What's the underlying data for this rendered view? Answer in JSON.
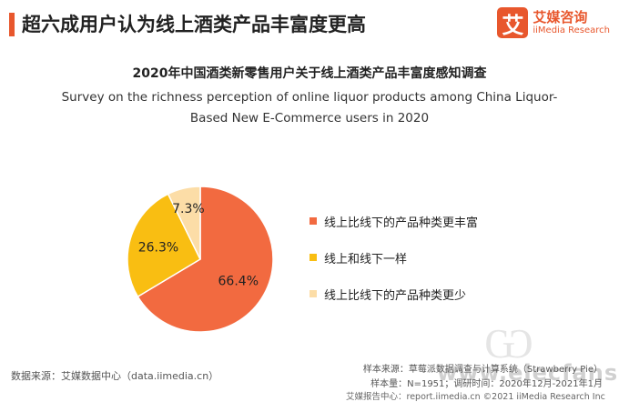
{
  "header": {
    "title": "超六成用户认为线上酒类产品丰富度更高",
    "accent_color": "#E8572D"
  },
  "brand": {
    "logo_glyph": "艾",
    "name_cn": "艾媒咨询",
    "name_en": "iiMedia Research",
    "color": "#E8572D"
  },
  "chart_data": {
    "type": "pie",
    "title": "2020年中国酒类新零售用户关于线上酒类产品丰富度感知调查",
    "subtitle_line1": "Survey on the richness perception of online liquor products among China Liquor-",
    "subtitle_line2": "Based New E-Commerce users in 2020",
    "slices": [
      {
        "label": "线上比线下的产品种类更丰富",
        "value": 66.4,
        "display": "66.4%",
        "color": "#F26A40"
      },
      {
        "label": "线上和线下一样",
        "value": 26.3,
        "display": "26.3%",
        "color": "#F9BE12"
      },
      {
        "label": "线上比线下的产品种类更少",
        "value": 7.3,
        "display": "7.3%",
        "color": "#FCDDA7"
      }
    ],
    "start": "top",
    "direction": "clockwise",
    "legend_position": "right"
  },
  "sources": {
    "data_source": "数据来源：艾媒数据中心（data.iimedia.cn）",
    "sample_source": "样本来源：草莓派数据调查与计算系统（Strawberry Pie）",
    "sample_info": "样本量：N=1951；调研时间：2020年12月-2021年1月"
  },
  "footer": {
    "text": "艾媒报告中心：report.iimedia.cn  ©2021  iiMedia Research  Inc"
  },
  "watermark": {
    "text": "www.elecfans.com",
    "glyph": "Ѡ"
  }
}
